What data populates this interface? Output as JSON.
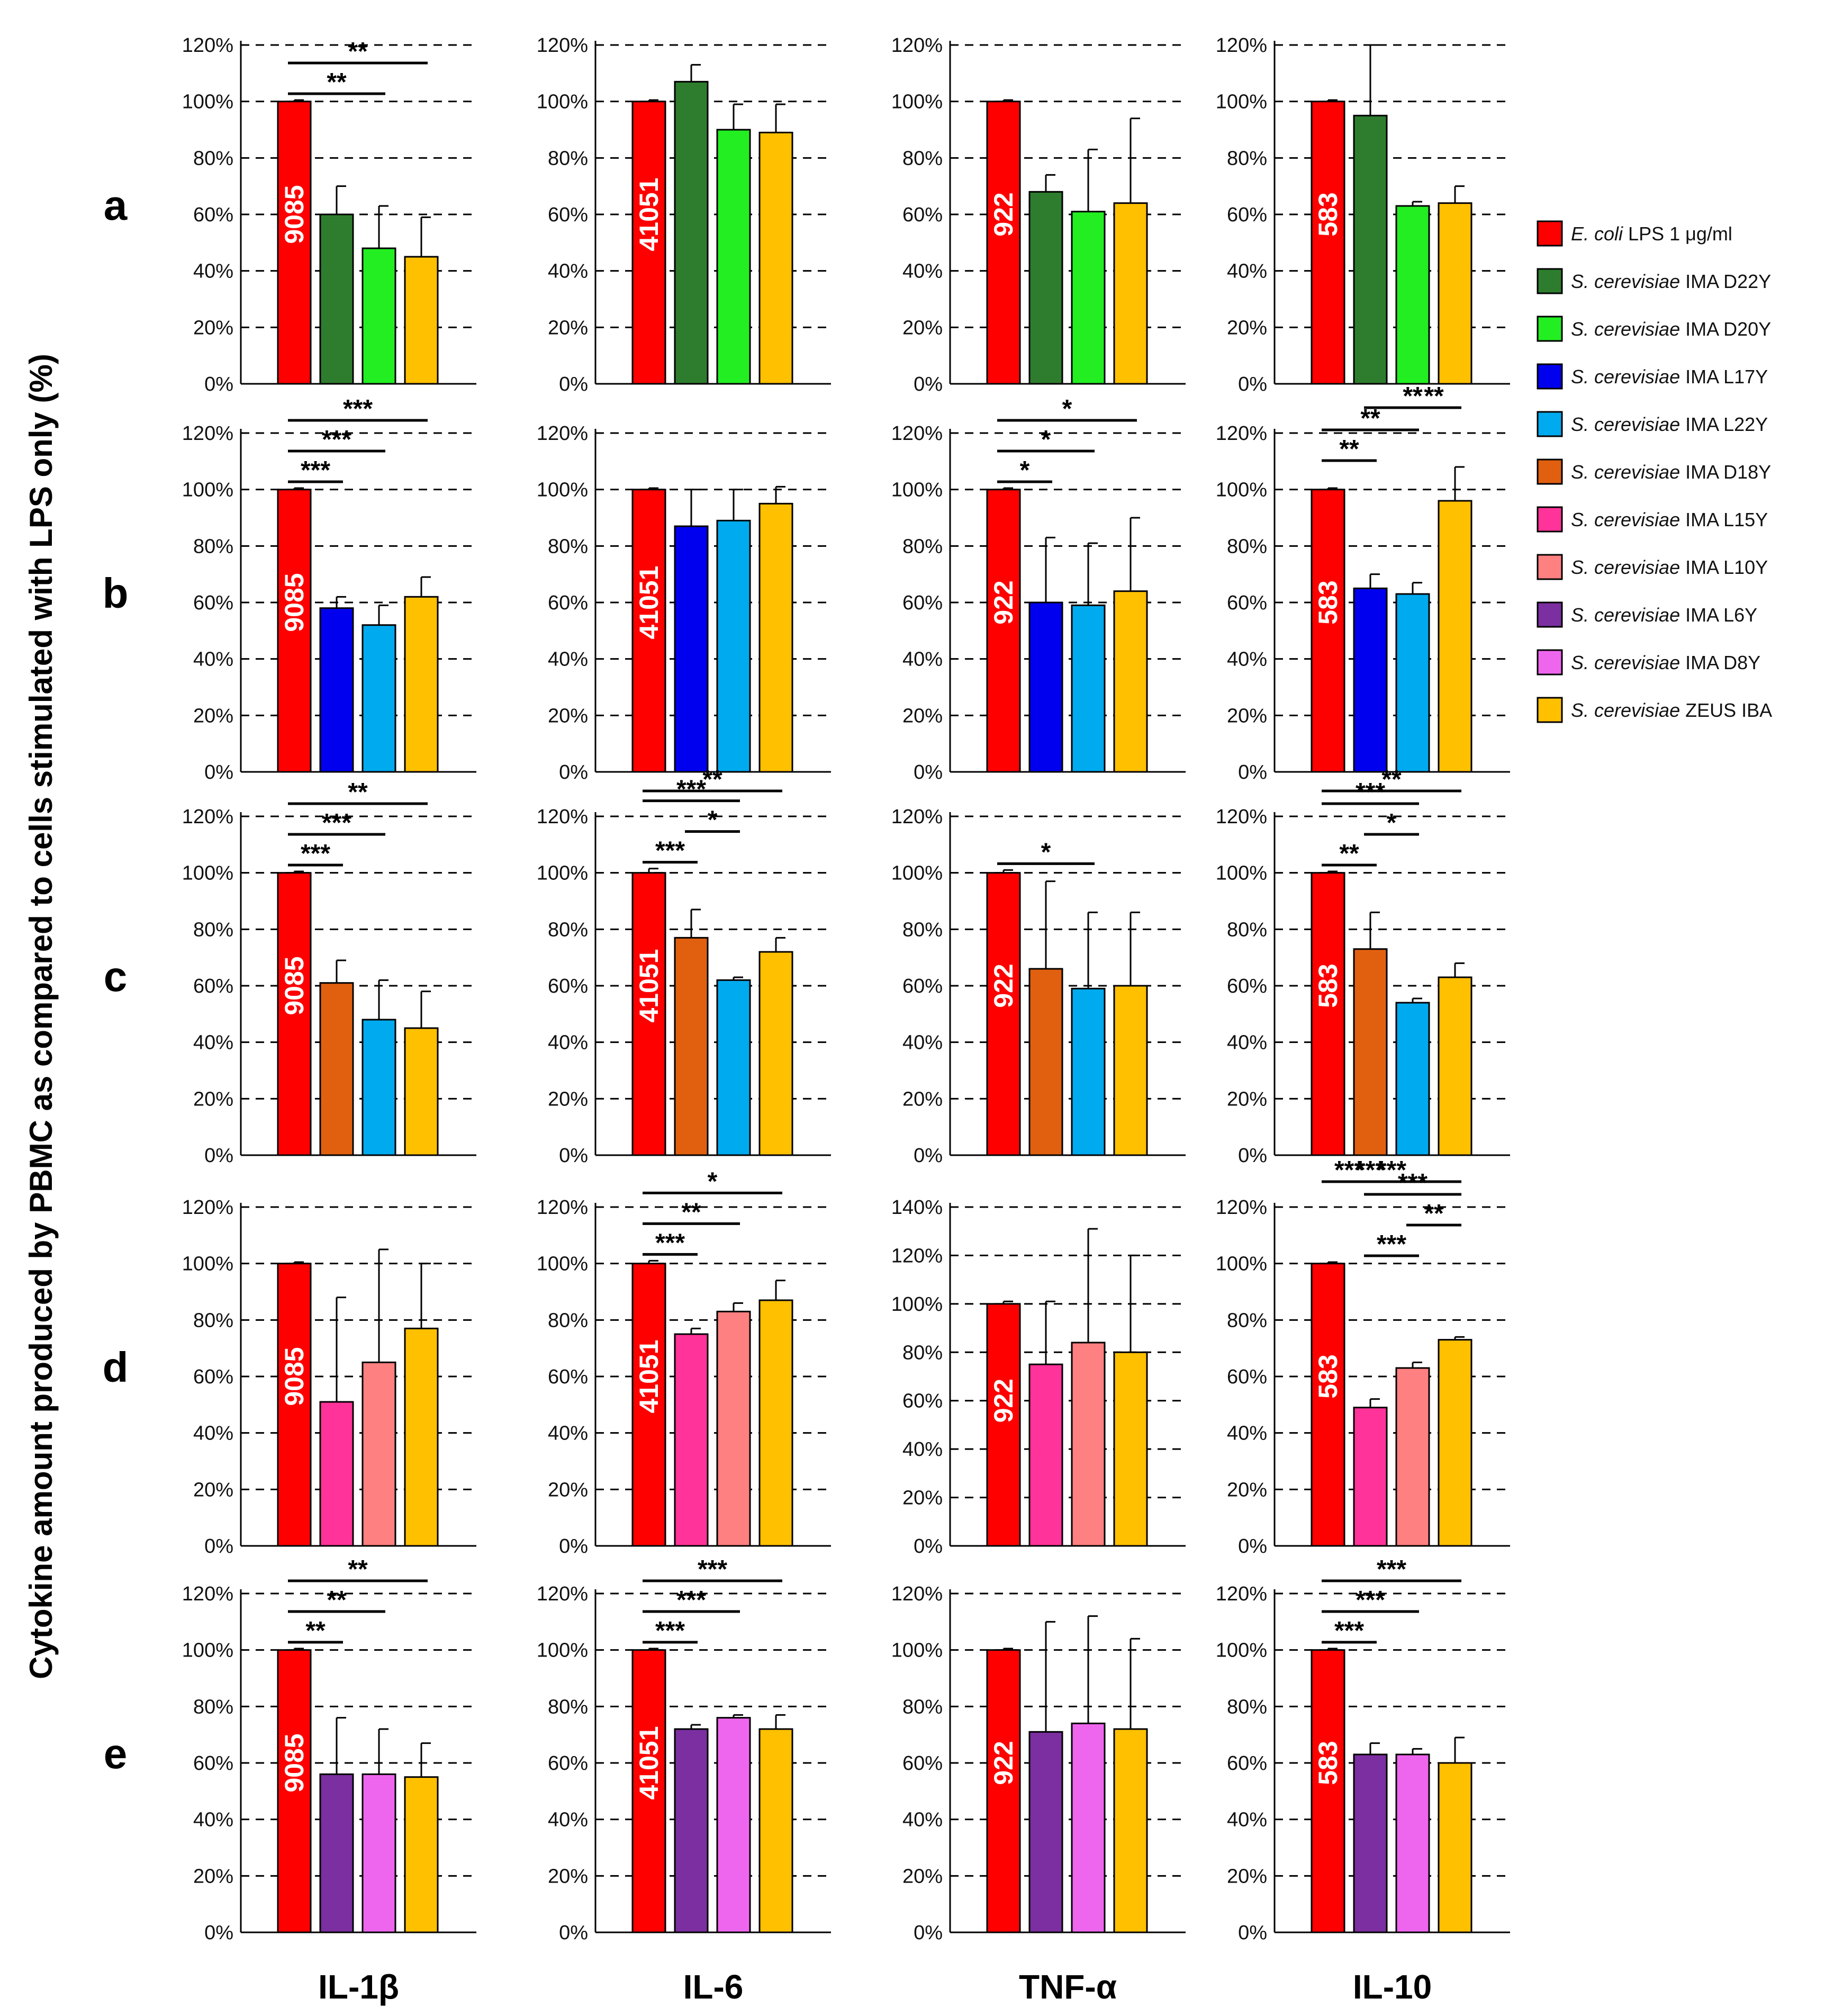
{
  "figure": {
    "y_axis_label": "Cytokine amount produced by PBMC as compared to cells stimulated  with LPS only (%)",
    "row_labels": [
      "a",
      "b",
      "c",
      "d",
      "e"
    ],
    "column_labels": [
      "IL-1β",
      "IL-6",
      "TNF-α",
      "IL-10"
    ]
  },
  "legend": {
    "items": [
      {
        "italic": "E. coli",
        "text": " LPS 1 μg/ml",
        "color": "#ff0000"
      },
      {
        "italic": "S. cerevisiae",
        "text": " IMA D22Y",
        "color": "#2e7d2e"
      },
      {
        "italic": "S. cerevisiae",
        "text": " IMA D20Y",
        "color": "#22ee22"
      },
      {
        "italic": "S. cerevisiae",
        "text": " IMA L17Y",
        "color": "#0000ee"
      },
      {
        "italic": "S. cerevisiae",
        "text": " IMA L22Y",
        "color": "#00aaee"
      },
      {
        "italic": "S. cerevisiae",
        "text": " IMA D18Y",
        "color": "#e06010"
      },
      {
        "italic": "S. cerevisiae",
        "text": " IMA L15Y",
        "color": "#ff3399"
      },
      {
        "italic": "S. cerevisiae",
        "text": " IMA L10Y",
        "color": "#ff8080"
      },
      {
        "italic": "S. cerevisiae",
        "text": " IMA L6Y",
        "color": "#7b2fa0"
      },
      {
        "italic": "S. cerevisiae",
        "text": " IMA D8Y",
        "color": "#ee66ee"
      },
      {
        "italic": "S. cerevisiae",
        "text": " ZEUS IBA",
        "color": "#ffc000"
      }
    ]
  },
  "chart_data": [
    {
      "type": "bar",
      "row": "a",
      "column": "IL-1β",
      "ylim": [
        0,
        120
      ],
      "ticks": [
        "0%",
        "20%",
        "40%",
        "60%",
        "80%",
        "100%",
        "120%"
      ],
      "values": [
        100,
        60,
        48,
        45
      ],
      "errors": [
        0.5,
        10,
        15,
        14
      ],
      "colors": [
        "#ff0000",
        "#2e7d2e",
        "#22ee22",
        "#ffc000"
      ],
      "bar_label": "9085",
      "significance": [
        {
          "from": 0,
          "to": 2,
          "label": "**"
        },
        {
          "from": 0,
          "to": 3,
          "label": "**"
        }
      ]
    },
    {
      "type": "bar",
      "row": "a",
      "column": "IL-6",
      "ylim": [
        0,
        120
      ],
      "ticks": [
        "0%",
        "20%",
        "40%",
        "60%",
        "80%",
        "100%",
        "120%"
      ],
      "values": [
        100,
        107,
        90,
        89
      ],
      "errors": [
        0.5,
        6,
        9,
        10
      ],
      "colors": [
        "#ff0000",
        "#2e7d2e",
        "#22ee22",
        "#ffc000"
      ],
      "bar_label": "41051",
      "significance": []
    },
    {
      "type": "bar",
      "row": "a",
      "column": "TNF-α",
      "ylim": [
        0,
        120
      ],
      "ticks": [
        "0%",
        "20%",
        "40%",
        "60%",
        "80%",
        "100%",
        "120%"
      ],
      "values": [
        100,
        68,
        61,
        64
      ],
      "errors": [
        0.5,
        6,
        22,
        30
      ],
      "colors": [
        "#ff0000",
        "#2e7d2e",
        "#22ee22",
        "#ffc000"
      ],
      "bar_label": "922",
      "significance": []
    },
    {
      "type": "bar",
      "row": "a",
      "column": "IL-10",
      "ylim": [
        0,
        120
      ],
      "ticks": [
        "0%",
        "20%",
        "40%",
        "60%",
        "80%",
        "100%",
        "120%"
      ],
      "values": [
        100,
        95,
        63,
        64
      ],
      "errors": [
        0.5,
        25,
        1.5,
        6
      ],
      "colors": [
        "#ff0000",
        "#2e7d2e",
        "#22ee22",
        "#ffc000"
      ],
      "bar_label": "583",
      "significance": []
    },
    {
      "type": "bar",
      "row": "b",
      "column": "IL-1β",
      "ylim": [
        0,
        120
      ],
      "ticks": [
        "0%",
        "20%",
        "40%",
        "60%",
        "80%",
        "100%",
        "120%"
      ],
      "values": [
        100,
        58,
        52,
        62
      ],
      "errors": [
        0.5,
        4,
        7,
        7
      ],
      "colors": [
        "#ff0000",
        "#0000ee",
        "#00aaee",
        "#ffc000"
      ],
      "bar_label": "9085",
      "significance": [
        {
          "from": 0,
          "to": 1,
          "label": "***"
        },
        {
          "from": 0,
          "to": 2,
          "label": "***"
        },
        {
          "from": 0,
          "to": 3,
          "label": "***"
        }
      ]
    },
    {
      "type": "bar",
      "row": "b",
      "column": "IL-6",
      "ylim": [
        0,
        120
      ],
      "ticks": [
        "0%",
        "20%",
        "40%",
        "60%",
        "80%",
        "100%",
        "120%"
      ],
      "values": [
        100,
        87,
        89,
        95
      ],
      "errors": [
        0.5,
        13,
        11,
        6
      ],
      "colors": [
        "#ff0000",
        "#0000ee",
        "#00aaee",
        "#ffc000"
      ],
      "bar_label": "41051",
      "significance": []
    },
    {
      "type": "bar",
      "row": "b",
      "column": "TNF-α",
      "ylim": [
        0,
        120
      ],
      "ticks": [
        "0%",
        "20%",
        "40%",
        "60%",
        "80%",
        "100%",
        "120%"
      ],
      "values": [
        100,
        60,
        59,
        64
      ],
      "errors": [
        0.5,
        23,
        22,
        26
      ],
      "colors": [
        "#ff0000",
        "#0000ee",
        "#00aaee",
        "#ffc000"
      ],
      "bar_label": "922",
      "significance": [
        {
          "from": 0,
          "to": 1,
          "label": "*"
        },
        {
          "from": 0,
          "to": 2,
          "label": "*"
        },
        {
          "from": 0,
          "to": 3,
          "label": "*"
        }
      ]
    },
    {
      "type": "bar",
      "row": "b",
      "column": "IL-10",
      "ylim": [
        0,
        120
      ],
      "ticks": [
        "0%",
        "20%",
        "40%",
        "60%",
        "80%",
        "100%",
        "120%"
      ],
      "values": [
        100,
        65,
        63,
        96
      ],
      "errors": [
        0.5,
        5,
        4,
        12
      ],
      "colors": [
        "#ff0000",
        "#0000ee",
        "#00aaee",
        "#ffc000"
      ],
      "bar_label": "583",
      "significance": [
        {
          "from": 0,
          "to": 1,
          "label": "**"
        },
        {
          "from": 0,
          "to": 2,
          "label": "**"
        },
        {
          "from": 2,
          "to": 3,
          "label": "**"
        },
        {
          "from": 1,
          "to": 3,
          "label": "**"
        }
      ]
    },
    {
      "type": "bar",
      "row": "c",
      "column": "IL-1β",
      "ylim": [
        0,
        120
      ],
      "ticks": [
        "0%",
        "20%",
        "40%",
        "60%",
        "80%",
        "100%",
        "120%"
      ],
      "values": [
        100,
        61,
        48,
        45
      ],
      "errors": [
        0.5,
        8,
        14,
        13
      ],
      "colors": [
        "#ff0000",
        "#e06010",
        "#00aaee",
        "#ffc000"
      ],
      "bar_label": "9085",
      "significance": [
        {
          "from": 0,
          "to": 1,
          "label": "***"
        },
        {
          "from": 0,
          "to": 2,
          "label": "***"
        },
        {
          "from": 0,
          "to": 3,
          "label": "**"
        }
      ]
    },
    {
      "type": "bar",
      "row": "c",
      "column": "IL-6",
      "ylim": [
        0,
        120
      ],
      "ticks": [
        "0%",
        "20%",
        "40%",
        "60%",
        "80%",
        "100%",
        "120%"
      ],
      "values": [
        100,
        77,
        62,
        72
      ],
      "errors": [
        1.5,
        10,
        1,
        5
      ],
      "colors": [
        "#ff0000",
        "#e06010",
        "#00aaee",
        "#ffc000"
      ],
      "bar_label": "41051",
      "significance": [
        {
          "from": 0,
          "to": 1,
          "label": "***"
        },
        {
          "from": 1,
          "to": 2,
          "label": "*"
        },
        {
          "from": 0,
          "to": 2,
          "label": "***"
        },
        {
          "from": 0,
          "to": 3,
          "label": "**"
        }
      ]
    },
    {
      "type": "bar",
      "row": "c",
      "column": "TNF-α",
      "ylim": [
        0,
        120
      ],
      "ticks": [
        "0%",
        "20%",
        "40%",
        "60%",
        "80%",
        "100%",
        "120%"
      ],
      "values": [
        100,
        66,
        59,
        60
      ],
      "errors": [
        1,
        31,
        27,
        26
      ],
      "colors": [
        "#ff0000",
        "#e06010",
        "#00aaee",
        "#ffc000"
      ],
      "bar_label": "922",
      "significance": [
        {
          "from": 0,
          "to": 2,
          "label": "*"
        }
      ]
    },
    {
      "type": "bar",
      "row": "c",
      "column": "IL-10",
      "ylim": [
        0,
        120
      ],
      "ticks": [
        "0%",
        "20%",
        "40%",
        "60%",
        "80%",
        "100%",
        "120%"
      ],
      "values": [
        100,
        73,
        54,
        63
      ],
      "errors": [
        0.5,
        13,
        1.5,
        5
      ],
      "colors": [
        "#ff0000",
        "#e06010",
        "#00aaee",
        "#ffc000"
      ],
      "bar_label": "583",
      "significance": [
        {
          "from": 0,
          "to": 1,
          "label": "**"
        },
        {
          "from": 1,
          "to": 2,
          "label": "*"
        },
        {
          "from": 0,
          "to": 2,
          "label": "***"
        },
        {
          "from": 0,
          "to": 3,
          "label": "**"
        }
      ]
    },
    {
      "type": "bar",
      "row": "d",
      "column": "IL-1β",
      "ylim": [
        0,
        120
      ],
      "ticks": [
        "0%",
        "20%",
        "40%",
        "60%",
        "80%",
        "100%",
        "120%"
      ],
      "values": [
        100,
        51,
        65,
        77
      ],
      "errors": [
        0.5,
        37,
        40,
        23
      ],
      "colors": [
        "#ff0000",
        "#ff3399",
        "#ff8080",
        "#ffc000"
      ],
      "bar_label": "9085",
      "significance": []
    },
    {
      "type": "bar",
      "row": "d",
      "column": "IL-6",
      "ylim": [
        0,
        120
      ],
      "ticks": [
        "0%",
        "20%",
        "40%",
        "60%",
        "80%",
        "100%",
        "120%"
      ],
      "values": [
        100,
        75,
        83,
        87
      ],
      "errors": [
        1,
        2,
        3,
        7
      ],
      "colors": [
        "#ff0000",
        "#ff3399",
        "#ff8080",
        "#ffc000"
      ],
      "bar_label": "41051",
      "significance": [
        {
          "from": 0,
          "to": 1,
          "label": "***"
        },
        {
          "from": 0,
          "to": 2,
          "label": "**"
        },
        {
          "from": 0,
          "to": 3,
          "label": "*"
        }
      ]
    },
    {
      "type": "bar",
      "row": "d",
      "column": "TNF-α",
      "ylim": [
        0,
        140
      ],
      "ticks": [
        "0%",
        "20%",
        "40%",
        "60%",
        "80%",
        "100%",
        "120%",
        "140%"
      ],
      "values": [
        100,
        75,
        84,
        80
      ],
      "errors": [
        1,
        26,
        47,
        40
      ],
      "colors": [
        "#ff0000",
        "#ff3399",
        "#ff8080",
        "#ffc000"
      ],
      "bar_label": "922",
      "significance": []
    },
    {
      "type": "bar",
      "row": "d",
      "column": "IL-10",
      "ylim": [
        0,
        120
      ],
      "ticks": [
        "0%",
        "20%",
        "40%",
        "60%",
        "80%",
        "100%",
        "120%"
      ],
      "values": [
        100,
        49,
        63,
        73
      ],
      "errors": [
        0.5,
        3,
        2,
        1
      ],
      "colors": [
        "#ff0000",
        "#ff3399",
        "#ff8080",
        "#ffc000"
      ],
      "bar_label": "583",
      "significance": [
        {
          "from": 1,
          "to": 2,
          "label": "***"
        },
        {
          "from": 2,
          "to": 3,
          "label": "**"
        },
        {
          "from": 1,
          "to": 3,
          "label": "***"
        },
        {
          "from": 0,
          "to": 1,
          "label": "***"
        },
        {
          "from": 0,
          "to": 2,
          "label": "***"
        },
        {
          "from": 0,
          "to": 3,
          "label": "***"
        }
      ]
    },
    {
      "type": "bar",
      "row": "e",
      "column": "IL-1β",
      "ylim": [
        0,
        120
      ],
      "ticks": [
        "0%",
        "20%",
        "40%",
        "60%",
        "80%",
        "100%",
        "120%"
      ],
      "values": [
        100,
        56,
        56,
        55
      ],
      "errors": [
        0.5,
        20,
        16,
        12
      ],
      "colors": [
        "#ff0000",
        "#7b2fa0",
        "#ee66ee",
        "#ffc000"
      ],
      "bar_label": "9085",
      "significance": [
        {
          "from": 0,
          "to": 1,
          "label": "**"
        },
        {
          "from": 0,
          "to": 2,
          "label": "**"
        },
        {
          "from": 0,
          "to": 3,
          "label": "**"
        }
      ]
    },
    {
      "type": "bar",
      "row": "e",
      "column": "IL-6",
      "ylim": [
        0,
        120
      ],
      "ticks": [
        "0%",
        "20%",
        "40%",
        "60%",
        "80%",
        "100%",
        "120%"
      ],
      "values": [
        100,
        72,
        76,
        72
      ],
      "errors": [
        0.5,
        1.5,
        1,
        5
      ],
      "colors": [
        "#ff0000",
        "#7b2fa0",
        "#ee66ee",
        "#ffc000"
      ],
      "bar_label": "41051",
      "significance": [
        {
          "from": 0,
          "to": 1,
          "label": "***"
        },
        {
          "from": 0,
          "to": 2,
          "label": "***"
        },
        {
          "from": 0,
          "to": 3,
          "label": "***"
        }
      ]
    },
    {
      "type": "bar",
      "row": "e",
      "column": "TNF-α",
      "ylim": [
        0,
        120
      ],
      "ticks": [
        "0%",
        "20%",
        "40%",
        "60%",
        "80%",
        "100%",
        "120%"
      ],
      "values": [
        100,
        71,
        74,
        72
      ],
      "errors": [
        0.5,
        39,
        38,
        32
      ],
      "colors": [
        "#ff0000",
        "#7b2fa0",
        "#ee66ee",
        "#ffc000"
      ],
      "bar_label": "922",
      "significance": []
    },
    {
      "type": "bar",
      "row": "e",
      "column": "IL-10",
      "ylim": [
        0,
        120
      ],
      "ticks": [
        "0%",
        "20%",
        "40%",
        "60%",
        "80%",
        "100%",
        "120%"
      ],
      "values": [
        100,
        63,
        63,
        60
      ],
      "errors": [
        0.5,
        4,
        2,
        9
      ],
      "colors": [
        "#ff0000",
        "#7b2fa0",
        "#ee66ee",
        "#ffc000"
      ],
      "bar_label": "583",
      "significance": [
        {
          "from": 0,
          "to": 1,
          "label": "***"
        },
        {
          "from": 0,
          "to": 2,
          "label": "***"
        },
        {
          "from": 0,
          "to": 3,
          "label": "***"
        }
      ]
    }
  ]
}
